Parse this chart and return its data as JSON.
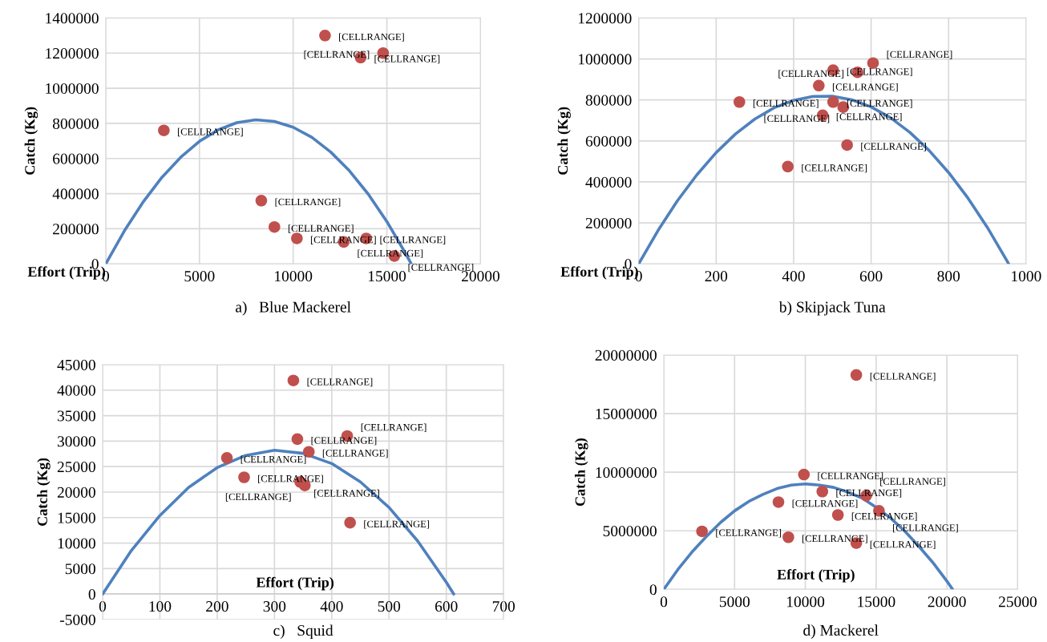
{
  "chart_data": [
    {
      "type": "scatter",
      "title": "a)   Blue Mackerel",
      "xlabel": "Effort (Trip)",
      "ylabel": "Catch (Kg)",
      "xlim": [
        0,
        20000
      ],
      "xticks": [
        0,
        5000,
        10000,
        15000,
        20000
      ],
      "ylim": [
        0,
        1400000
      ],
      "yticks": [
        0,
        200000,
        400000,
        600000,
        800000,
        1000000,
        1200000,
        1400000
      ],
      "grid": true,
      "series": [
        {
          "type": "scatter",
          "marker": "circle",
          "color": "#c0504d",
          "x": [
            3100,
            11700,
            13600,
            14800,
            8300,
            9000,
            10200,
            12700,
            13900,
            15400
          ],
          "values": [
            760000,
            1300000,
            1175000,
            1200000,
            360000,
            210000,
            145000,
            125000,
            145000,
            45000
          ],
          "value_labels": [
            "[CELLRANGE]",
            "[CELLRANGE]",
            "[CELLRANGE]",
            "[CELLRANGE]",
            "[CELLRANGE]",
            "[CELLRANGE]",
            "[CELLRANGE]",
            "[CELLRANGE]",
            "[CELLRANGE]",
            "[CELLRANGE]"
          ]
        },
        {
          "type": "line",
          "marker": "none",
          "color": "#4f81bd",
          "x": [
            0,
            1000,
            2000,
            3000,
            4000,
            5000,
            6000,
            7000,
            8000,
            9000,
            10000,
            11000,
            12000,
            13000,
            14000,
            15000,
            16000,
            16300
          ],
          "values": [
            0,
            189000,
            353000,
            493000,
            607000,
            698000,
            763000,
            804000,
            820000,
            811000,
            778000,
            720000,
            637000,
            530000,
            398000,
            241000,
            59000,
            0
          ]
        }
      ]
    },
    {
      "type": "scatter",
      "title": "b) Skipjack Tuna",
      "xlabel": "Effort (Trip)",
      "ylabel": "Catch (Kg)",
      "xlim": [
        0,
        1000
      ],
      "xticks": [
        0,
        200,
        400,
        600,
        800,
        1000
      ],
      "ylim": [
        0,
        1200000
      ],
      "yticks": [
        0,
        200000,
        400000,
        600000,
        800000,
        1000000,
        1200000
      ],
      "grid": true,
      "series": [
        {
          "type": "scatter",
          "marker": "circle",
          "color": "#c0504d",
          "x": [
            260,
            385,
            465,
            475,
            502,
            502,
            528,
            538,
            565,
            605
          ],
          "values": [
            790000,
            475000,
            870000,
            725000,
            945000,
            790000,
            765000,
            580000,
            935000,
            980000
          ],
          "value_labels": [
            "[CELLRANGE]",
            "[CELLRANGE]",
            "[CELLRANGE]",
            "[CELLRANGE]",
            "[CELLRANGE]",
            "[CELLRANGE]",
            "[CELLRANGE]",
            "[CELLRANGE]",
            "[CELLRANGE]",
            "[CELLRANGE]"
          ]
        },
        {
          "type": "line",
          "marker": "none",
          "color": "#4f81bd",
          "x": [
            0,
            50,
            100,
            150,
            200,
            250,
            300,
            350,
            400,
            450,
            500,
            550,
            600,
            650,
            700,
            750,
            800,
            850,
            900,
            950,
            955
          ],
          "values": [
            0,
            163000,
            308000,
            434000,
            543000,
            634000,
            707000,
            762000,
            798000,
            817000,
            818000,
            801000,
            766000,
            713000,
            642000,
            553000,
            446000,
            321000,
            178000,
            17000,
            0
          ]
        }
      ]
    },
    {
      "type": "scatter",
      "title": "c)   Squid",
      "xlabel": "Effort (Trip)",
      "ylabel": "Catch (Kg)",
      "xlim": [
        0,
        700
      ],
      "xticks": [
        0,
        100,
        200,
        300,
        400,
        500,
        600,
        700
      ],
      "ylim": [
        -5000,
        45000
      ],
      "yticks": [
        -5000,
        0,
        5000,
        10000,
        15000,
        20000,
        25000,
        30000,
        35000,
        40000,
        45000
      ],
      "grid": true,
      "series": [
        {
          "type": "scatter",
          "marker": "circle",
          "color": "#c0504d",
          "x": [
            217,
            247,
            333,
            340,
            345,
            353,
            360,
            427,
            432
          ],
          "values": [
            26700,
            22900,
            41900,
            30400,
            22000,
            21300,
            27900,
            31000,
            14000
          ],
          "value_labels": [
            "[CELLRANGE]",
            "[CELLRANGE]",
            "[CELLRANGE]",
            "[CELLRANGE]",
            "[CELLRANGE]",
            "[CELLRANGE]",
            "[CELLRANGE]",
            "[CELLRANGE]",
            "[CELLRANGE]"
          ]
        },
        {
          "type": "line",
          "marker": "none",
          "color": "#4f81bd",
          "x": [
            0,
            50,
            100,
            150,
            200,
            250,
            300,
            350,
            400,
            450,
            500,
            550,
            600,
            613
          ],
          "values": [
            0,
            8500,
            15400,
            20900,
            24800,
            27200,
            28200,
            27600,
            25600,
            22000,
            17000,
            10400,
            2300,
            0
          ]
        }
      ]
    },
    {
      "type": "scatter",
      "title": "d) Mackerel",
      "xlabel": "Effort (Trip)",
      "ylabel": "Catch (Kg)",
      "xlim": [
        0,
        25000
      ],
      "xticks": [
        0,
        5000,
        10000,
        15000,
        20000,
        25000
      ],
      "ylim": [
        0,
        20000000
      ],
      "yticks": [
        0,
        5000000,
        10000000,
        15000000,
        20000000
      ],
      "grid": true,
      "series": [
        {
          "type": "scatter",
          "marker": "circle",
          "color": "#c0504d",
          "x": [
            2700,
            8100,
            8800,
            9900,
            11200,
            12300,
            13600,
            13600,
            14300,
            15200
          ],
          "values": [
            4950000,
            7450000,
            4450000,
            9800000,
            8350000,
            6350000,
            18300000,
            3950000,
            8000000,
            6700000
          ],
          "value_labels": [
            "[CELLRANGE]",
            "[CELLRANGE]",
            "[CELLRANGE]",
            "[CELLRANGE]",
            "[CELLRANGE]",
            "[CELLRANGE]",
            "[CELLRANGE]",
            "[CELLRANGE]",
            "[CELLRANGE]",
            "[CELLRANGE]"
          ]
        },
        {
          "type": "line",
          "marker": "none",
          "color": "#4f81bd",
          "x": [
            0,
            1000,
            2000,
            3000,
            4000,
            5000,
            6000,
            7000,
            8000,
            9000,
            10000,
            11000,
            12000,
            13000,
            14000,
            15000,
            16000,
            17000,
            18000,
            19000,
            20000,
            20400
          ],
          "values": [
            0,
            1700000,
            3200000,
            4500000,
            5700000,
            6700000,
            7500000,
            8100000,
            8600000,
            8900000,
            9000000,
            8900000,
            8700000,
            8300000,
            7800000,
            7000000,
            6100000,
            5000000,
            3700000,
            2300000,
            700000,
            0
          ]
        }
      ]
    }
  ]
}
